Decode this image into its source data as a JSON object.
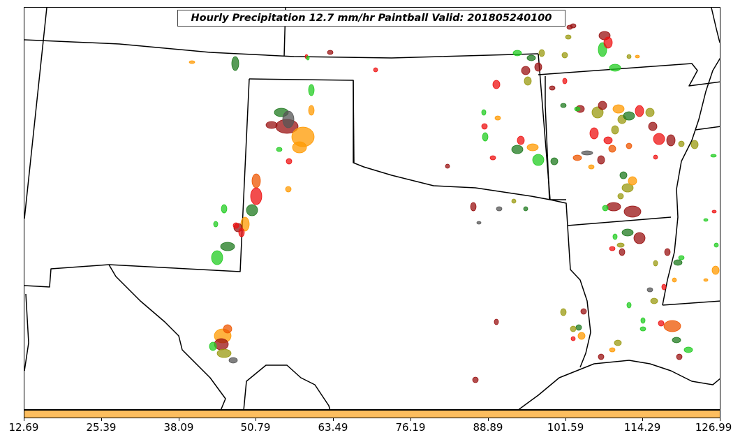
{
  "title": "Hourly Precipitation 12.7 mm/hr Paintball Valid: 201805240100",
  "colorbar": {
    "color": "#fdbe5f",
    "tick_labels": [
      "12.69",
      "25.39",
      "38.09",
      "50.79",
      "63.49",
      "76.19",
      "88.89",
      "101.59",
      "114.29",
      "126.99"
    ]
  },
  "colors": {
    "dark_green": "#1f7a1f",
    "bright_green": "#22cc22",
    "olive": "#9a9a10",
    "orange": "#ff9900",
    "dark_orange": "#ee5500",
    "red": "#ee1111",
    "dark_red": "#991111",
    "gray": "#555555"
  }
}
